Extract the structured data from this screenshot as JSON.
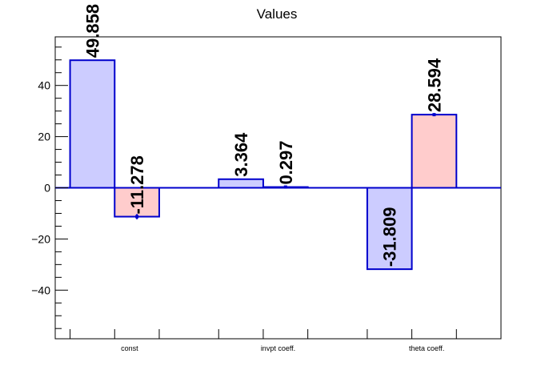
{
  "chart_data": {
    "type": "bar",
    "title": "Values",
    "xlabel": "",
    "ylabel": "",
    "categories": [
      "const",
      "invpt coeff.",
      "theta coeff."
    ],
    "series": [
      {
        "values": [
          49.858,
          3.364,
          -31.809
        ],
        "errors": [
          0,
          0,
          0
        ],
        "labels": [
          "49.858",
          "3.364",
          "-31.809"
        ]
      },
      {
        "values": [
          -11.278,
          0.297,
          28.594
        ],
        "errors": [
          1.0,
          0.05,
          0.5
        ],
        "labels": [
          "-11.278",
          "0.297",
          "28.594"
        ]
      }
    ],
    "ylim": [
      -59,
      59
    ],
    "yticks": [
      -40,
      -20,
      0,
      20,
      40
    ],
    "ytick_labels": [
      "−40",
      "−20",
      "0",
      "20",
      "40"
    ],
    "grid": false,
    "colors": {
      "series_fill": [
        "#ccccff",
        "#ffcccc"
      ],
      "bar_edge": "#0000cc",
      "zero_line": "#0000cc",
      "axis": "#000000"
    }
  }
}
